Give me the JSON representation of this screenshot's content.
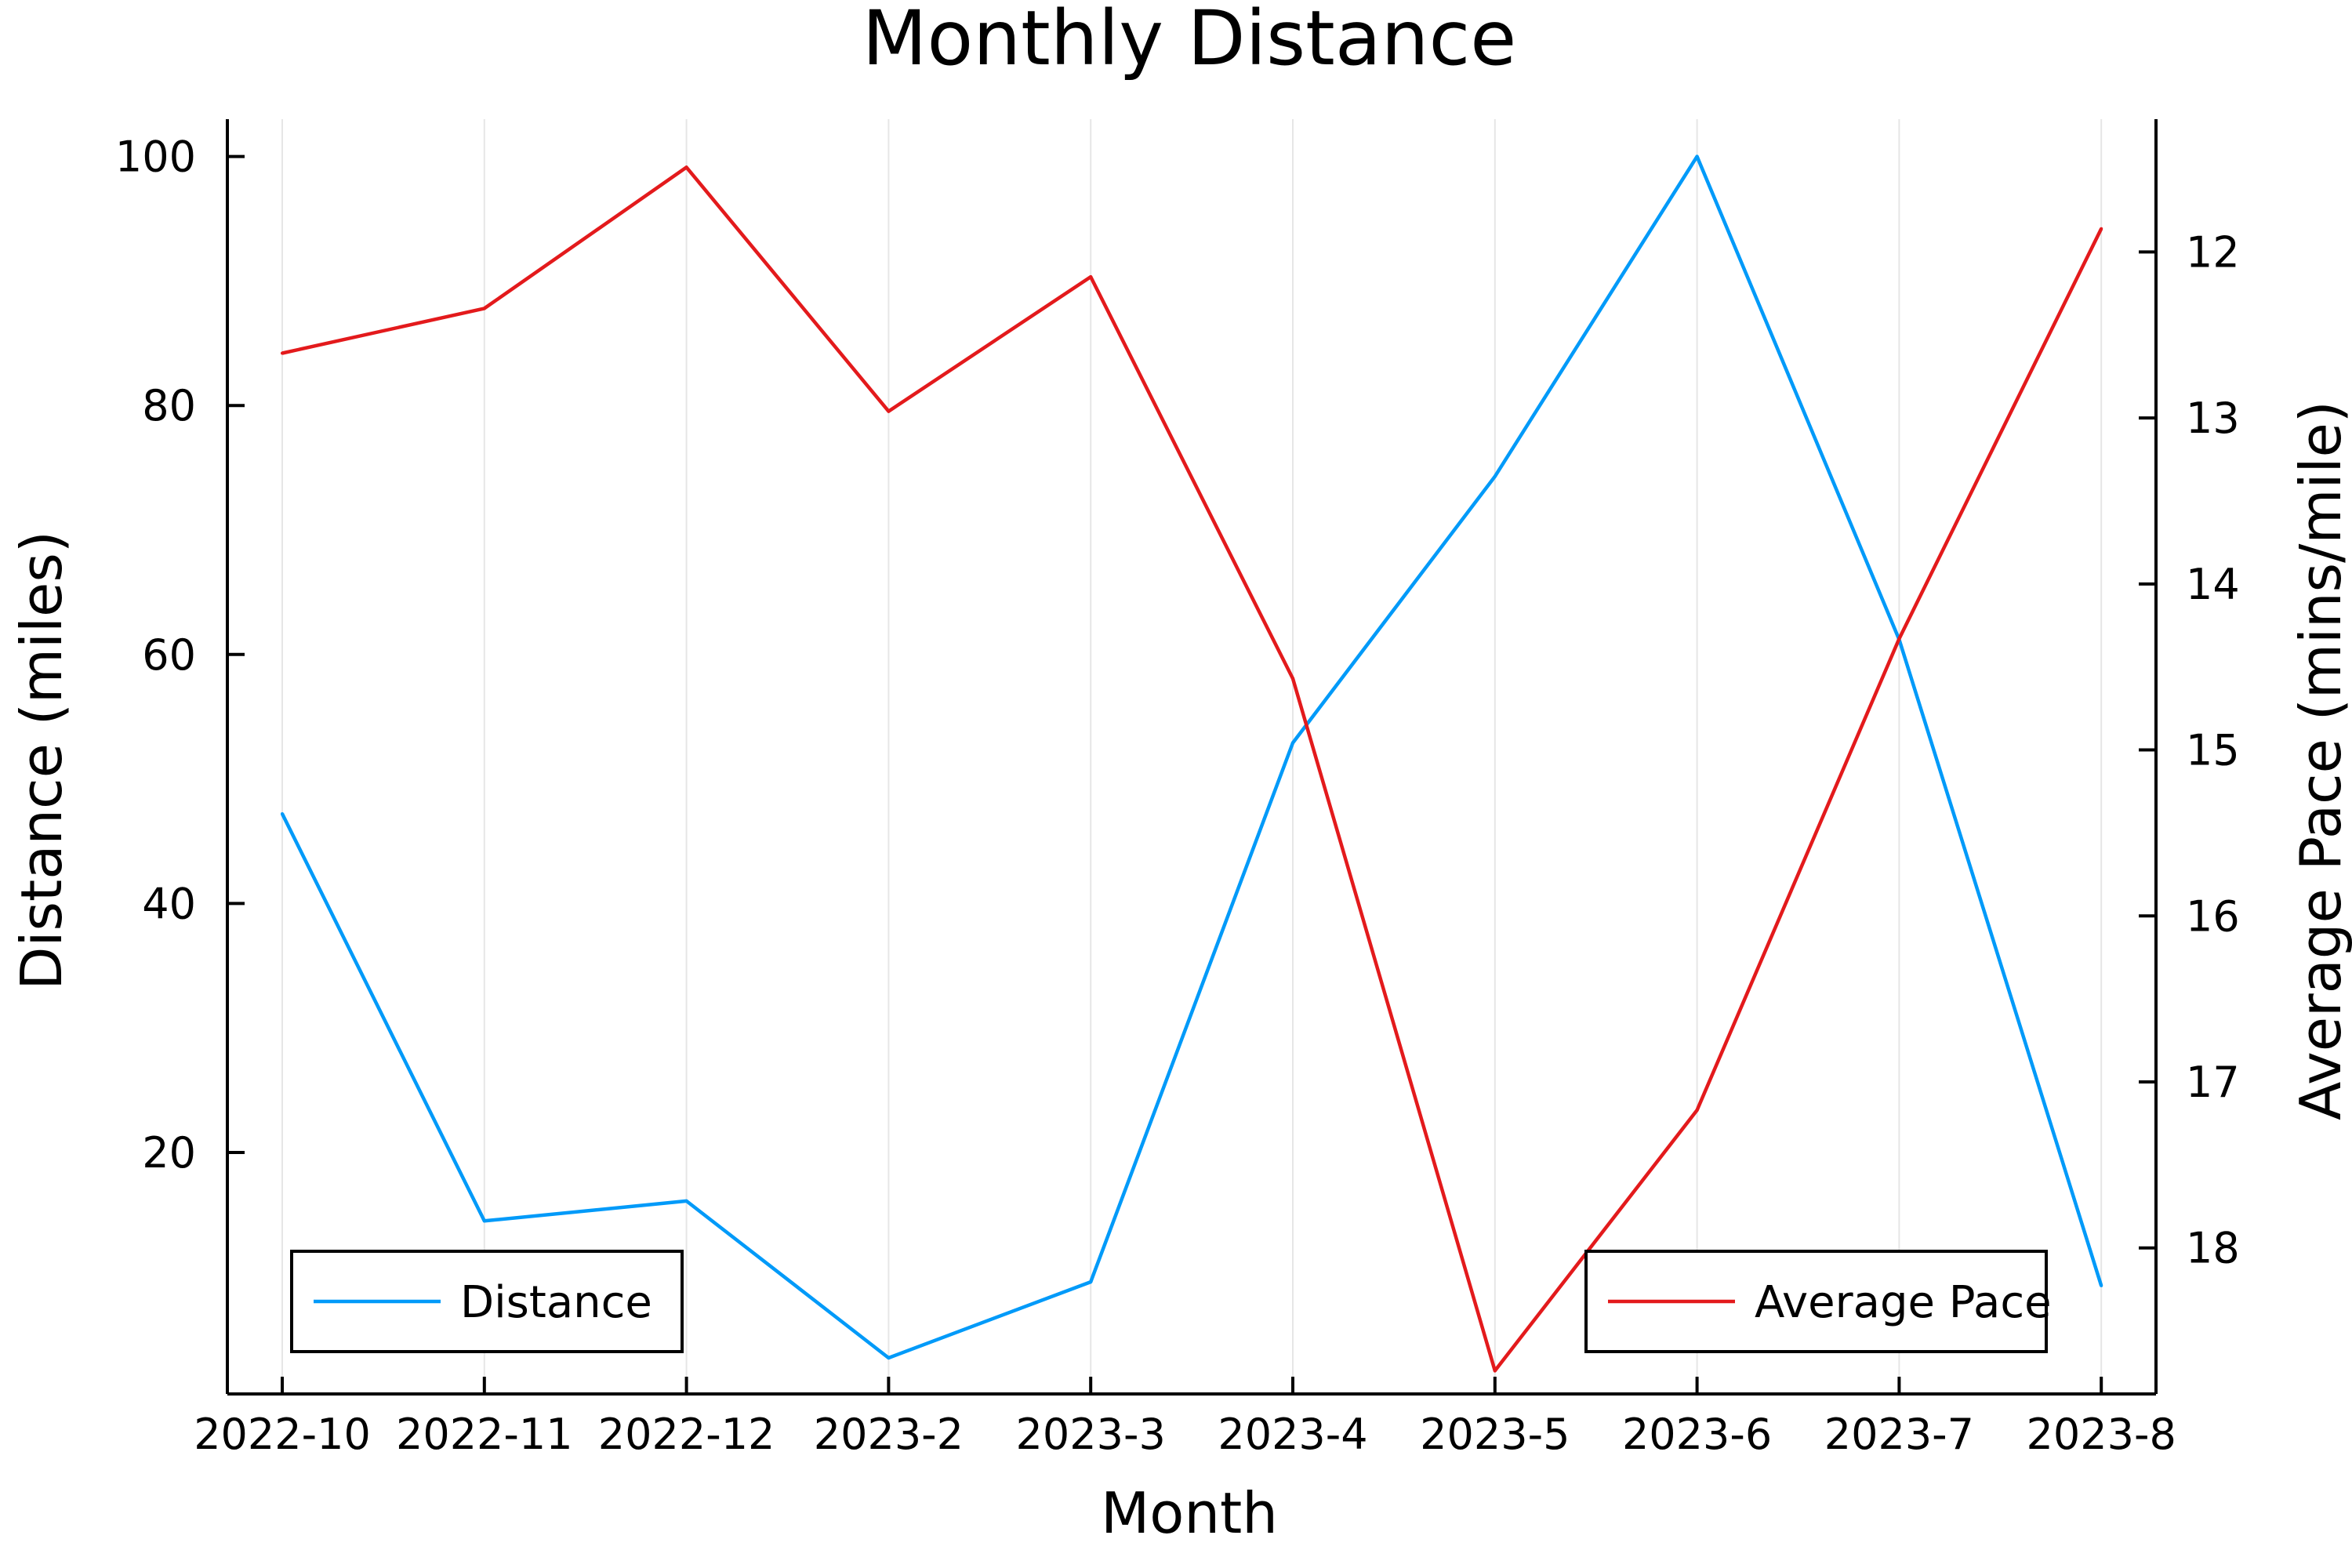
{
  "chart_data": {
    "type": "line",
    "title": "Monthly Distance",
    "xlabel": "Month",
    "ylabel": "Distance (miles)",
    "y2label": "Average Pace (mins/mile)",
    "categories": [
      "2022-10",
      "2022-11",
      "2022-12",
      "2023-2",
      "2023-3",
      "2023-4",
      "2023-5",
      "2023-6",
      "2023-7",
      "2023-8"
    ],
    "series": [
      {
        "name": "Distance",
        "axis": "left",
        "color": "#009af9",
        "values": [
          47.2,
          14.5,
          16.1,
          3.5,
          9.6,
          52.9,
          74.3,
          100.0,
          61.2,
          9.3
        ]
      },
      {
        "name": "Average Pace",
        "axis": "right",
        "color": "#e31a1c",
        "values": [
          12.61,
          12.34,
          11.49,
          12.96,
          12.15,
          14.57,
          18.74,
          17.17,
          14.33,
          11.86
        ]
      }
    ],
    "ylim": [
      0.6,
      103.0
    ],
    "yticks": [
      20,
      40,
      60,
      80,
      100
    ],
    "y2lim": [
      18.88,
      11.2
    ],
    "y2ticks": [
      12,
      13,
      14,
      15,
      16,
      17,
      18
    ],
    "y2_inverted": true,
    "grid": "vertical",
    "legend": [
      {
        "series": "Distance",
        "placement": "bottom-left"
      },
      {
        "series": "Average Pace",
        "placement": "bottom-right"
      }
    ]
  }
}
